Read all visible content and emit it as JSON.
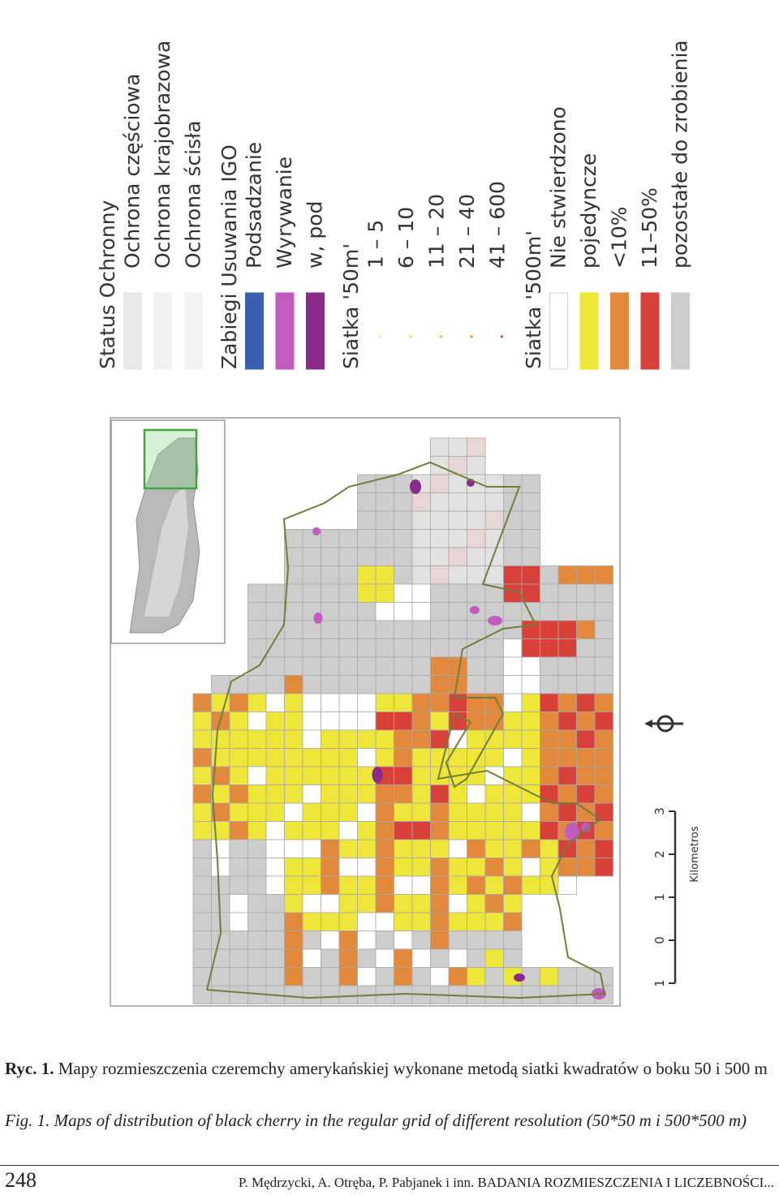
{
  "legend": {
    "sections": [
      {
        "title": "Status Ochronny",
        "items": [
          {
            "label": "Ochrona częściowa",
            "color": "#e9e9e9"
          },
          {
            "label": "Ochrona krajobrazowa",
            "color": "#f1f1f1"
          },
          {
            "label": "Ochrona ścisła",
            "color": "#f4f4f4"
          }
        ]
      },
      {
        "title": "Zabiegi Usuwania IGO",
        "items": [
          {
            "label": "Podsadzanie",
            "color": "#3b5fb0"
          },
          {
            "label": "Wyrywanie",
            "color": "#c05cbd"
          },
          {
            "label": "w, pod",
            "color": "#8a2a8a"
          }
        ]
      },
      {
        "title": "Siatka '50m'",
        "items": [
          {
            "label": "1 – 5",
            "color": "#f6e680",
            "dot": true
          },
          {
            "label": "6 – 10",
            "color": "#f3d060",
            "dot": true
          },
          {
            "label": "11 – 20",
            "color": "#f0b045",
            "dot": true
          },
          {
            "label": "21 – 40",
            "color": "#e98a35",
            "dot": true
          },
          {
            "label": "41 – 600",
            "color": "#d6452c",
            "dot": true
          }
        ]
      },
      {
        "title": "Siatka '500m'",
        "items": [
          {
            "label": "Nie stwierdzono",
            "color": "#ffffff"
          },
          {
            "label": "pojedyncze",
            "color": "#efe63a"
          },
          {
            "label": "<10%",
            "color": "#e3893b"
          },
          {
            "label": "11–50%",
            "color": "#d8403a"
          },
          {
            "label": "pozostałe do zrobienia",
            "color": "#cdcdcd"
          }
        ]
      }
    ]
  },
  "scale_bar": {
    "ticks": [
      "1",
      "0",
      "1",
      "2",
      "3"
    ],
    "unit": "Kilometros"
  },
  "caption_pl": {
    "label": "Ryc. 1.",
    "text": "Mapy rozmieszczenia czeremchy amerykańskiej wykonane metodą siatki kwadratów o boku 50 i 500 m"
  },
  "caption_en": {
    "label": "Fig. 1.",
    "text": "Maps of distribution of black cherry in the regular grid of different resolution (50*50 m i 500*500 m)"
  },
  "footer": {
    "page_number": "248",
    "running_head": "P. Mędrzycki, A. Otręba, P. Pabjanek i inn.  BADANIA ROZMIESZCZENIA I LICZEBNOŚCI..."
  }
}
